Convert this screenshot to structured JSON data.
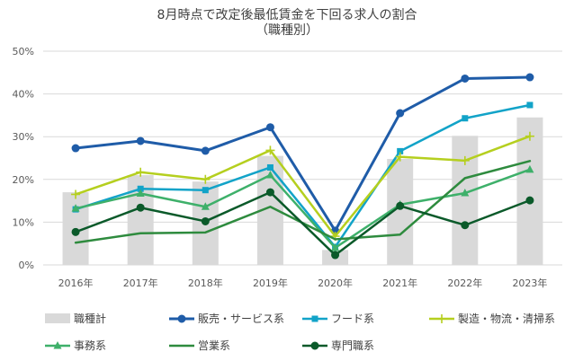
{
  "chart_data": {
    "type": "line",
    "title": "8月時点で改定後最低賃金を下回る求人の割合",
    "subtitle": "（職種別）",
    "categories": [
      "2016年",
      "2017年",
      "2018年",
      "2019年",
      "2020年",
      "2021年",
      "2022年",
      "2023年"
    ],
    "ylim": [
      0,
      50
    ],
    "yticks": [
      "0%",
      "10%",
      "20%",
      "30%",
      "40%",
      "50%"
    ],
    "grid": true,
    "legend_position": "bottom",
    "bar_series": {
      "name": "職種計",
      "color": "#d9d9d9",
      "values": [
        17.0,
        21.0,
        19.5,
        25.5,
        3.5,
        24.8,
        30.2,
        34.5
      ]
    },
    "series": [
      {
        "name": "販売・サービス系",
        "color": "#1f5ca8",
        "marker": "circle",
        "width": 3,
        "values": [
          27.3,
          29.0,
          26.7,
          32.2,
          8.0,
          35.5,
          43.6,
          43.9
        ]
      },
      {
        "name": "フード系",
        "color": "#12a3c8",
        "marker": "square",
        "width": 2.5,
        "values": [
          13.0,
          17.8,
          17.5,
          22.8,
          4.2,
          26.6,
          34.3,
          37.4
        ]
      },
      {
        "name": "製造・物流・清掃系",
        "color": "#b5cf1f",
        "marker": "plus",
        "width": 2.5,
        "values": [
          16.5,
          21.7,
          20.0,
          26.8,
          6.7,
          25.3,
          24.4,
          30.1
        ]
      },
      {
        "name": "事務系",
        "color": "#3eb06a",
        "marker": "triangle",
        "width": 2.5,
        "values": [
          13.2,
          16.7,
          13.6,
          21.0,
          4.0,
          14.1,
          16.8,
          22.3
        ]
      },
      {
        "name": "営業系",
        "color": "#2e8b3e",
        "marker": "none",
        "width": 2.5,
        "values": [
          5.2,
          7.4,
          7.6,
          13.6,
          6.0,
          7.1,
          20.3,
          24.3
        ]
      },
      {
        "name": "専門職系",
        "color": "#0b5a2a",
        "marker": "circle",
        "width": 2.5,
        "values": [
          7.7,
          13.4,
          10.2,
          17.0,
          2.3,
          13.8,
          9.3,
          15.1
        ]
      }
    ]
  }
}
